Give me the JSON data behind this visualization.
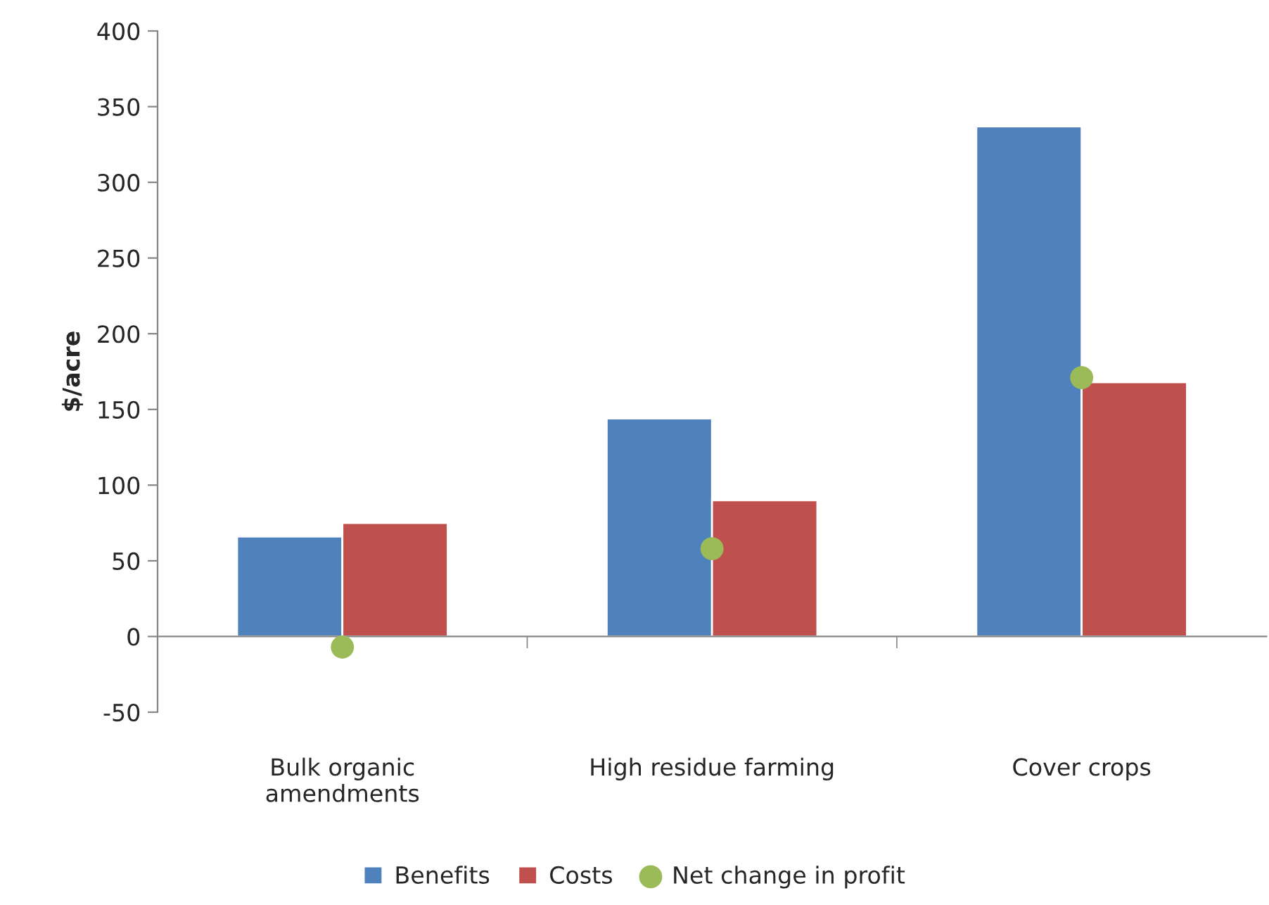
{
  "chart_data": {
    "type": "bar",
    "ylabel": "$/acre",
    "categories": [
      "Bulk organic\namendments",
      "High residue farming",
      "Cover crops"
    ],
    "series": [
      {
        "name": "Benefits",
        "color": "#4f81bd",
        "values": [
          66,
          144,
          337
        ]
      },
      {
        "name": "Costs",
        "color": "#c0504d",
        "values": [
          75,
          90,
          168
        ]
      },
      {
        "name": "Net change in profit",
        "type": "scatter",
        "color": "#9bbb59",
        "marker": "circle",
        "values": [
          -7,
          58,
          171
        ]
      }
    ],
    "ylim": [
      -50,
      400
    ],
    "yticks": [
      -50,
      0,
      50,
      100,
      150,
      200,
      250,
      300,
      350,
      400
    ],
    "legend": "bottom"
  }
}
